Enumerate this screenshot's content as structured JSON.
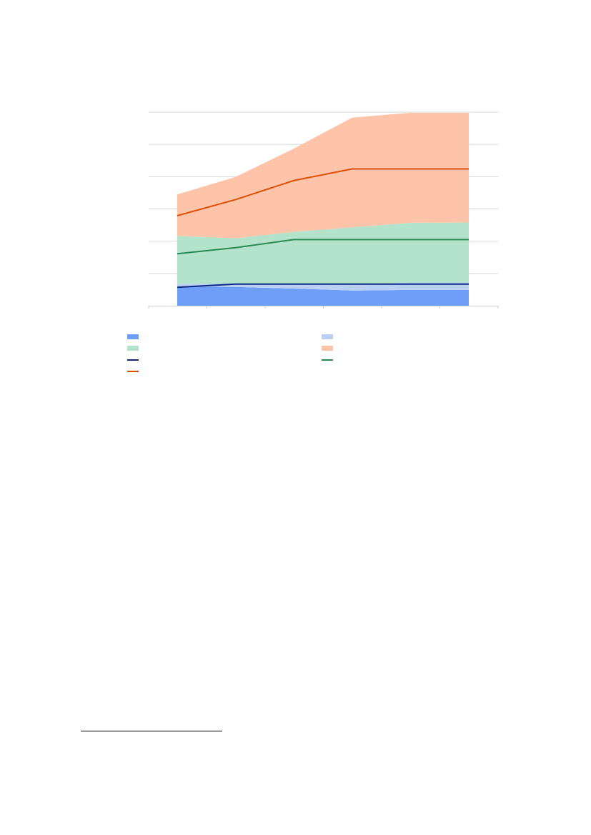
{
  "chart_data": {
    "type": "area",
    "stacked": true,
    "title": "",
    "xlabel": "",
    "ylabel": "",
    "x": [
      1,
      2,
      3,
      4,
      5,
      6
    ],
    "ylim": [
      0,
      6
    ],
    "grid": true,
    "legend_position": "bottom",
    "tick_labels_visible": false,
    "area_series": [
      {
        "color": "#6f9ef8",
        "values": [
          0.6,
          0.58,
          0.53,
          0.47,
          0.49,
          0.49
        ]
      },
      {
        "color": "#b9cff3",
        "values": [
          0.08,
          0.11,
          0.13,
          0.2,
          0.23,
          0.23
        ]
      },
      {
        "color": "#b3e3ca",
        "values": [
          1.48,
          1.4,
          1.63,
          1.76,
          1.85,
          1.86
        ]
      },
      {
        "color": "#fdc4a9",
        "values": [
          1.29,
          1.9,
          2.58,
          3.4,
          3.41,
          3.4
        ]
      }
    ],
    "line_series": [
      {
        "color": "#0b2a83",
        "values": [
          0.57,
          0.67,
          0.67,
          0.67,
          0.67,
          0.67
        ]
      },
      {
        "color": "#2a8a53",
        "values": [
          1.61,
          1.8,
          2.05,
          2.05,
          2.05,
          2.05
        ]
      },
      {
        "color": "#de4e06",
        "values": [
          2.79,
          3.29,
          3.88,
          4.24,
          4.24,
          4.24
        ]
      }
    ],
    "legend": [
      {
        "kind": "swatch",
        "color": "#6f9ef8",
        "label": ""
      },
      {
        "kind": "swatch",
        "color": "#b9cff3",
        "label": ""
      },
      {
        "kind": "swatch",
        "color": "#b3e3ca",
        "label": ""
      },
      {
        "kind": "swatch",
        "color": "#fdc4a9",
        "label": ""
      },
      {
        "kind": "line",
        "color": "#0b2a83",
        "label": ""
      },
      {
        "kind": "line",
        "color": "#2a8a53",
        "label": ""
      },
      {
        "kind": "line",
        "color": "#de4e06",
        "label": ""
      }
    ]
  }
}
